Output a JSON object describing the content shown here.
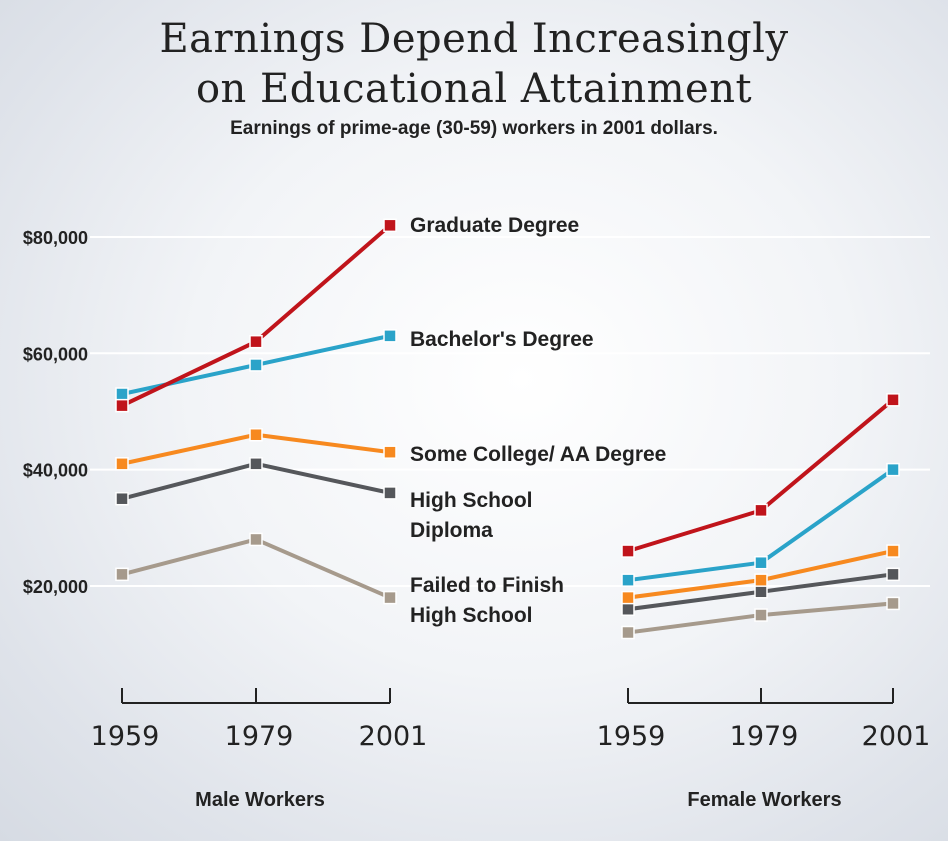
{
  "title_line1": "Earnings Depend Increasingly",
  "title_line2": "on Educational Attainment",
  "subtitle": "Earnings of prime-age (30-59) workers in 2001 dollars.",
  "chart_data": {
    "type": "line",
    "title": "Earnings Depend Increasingly on Educational Attainment",
    "subtitle": "Earnings of prime-age (30-59) workers in 2001 dollars.",
    "ylabel": "",
    "ylim": [
      0,
      90000
    ],
    "yticks": [
      20000,
      40000,
      60000,
      80000
    ],
    "ytick_labels": [
      "$20,000",
      "$40,000",
      "$60,000",
      "$80,000"
    ],
    "x": [
      "1959",
      "1979",
      "2001"
    ],
    "panels": [
      {
        "name": "Male Workers",
        "series": [
          {
            "name": "Graduate Degree",
            "values": [
              51000,
              62000,
              82000
            ]
          },
          {
            "name": "Bachelor's Degree",
            "values": [
              53000,
              58000,
              63000
            ]
          },
          {
            "name": "Some College/ AA Degree",
            "values": [
              41000,
              46000,
              43000
            ]
          },
          {
            "name": "High School Diploma",
            "values": [
              35000,
              41000,
              36000
            ]
          },
          {
            "name": "Failed to Finish High School",
            "values": [
              22000,
              28000,
              18000
            ]
          }
        ]
      },
      {
        "name": "Female Workers",
        "series": [
          {
            "name": "Graduate Degree",
            "values": [
              26000,
              33000,
              52000
            ]
          },
          {
            "name": "Bachelor's Degree",
            "values": [
              21000,
              24000,
              40000
            ]
          },
          {
            "name": "Some College/ AA Degree",
            "values": [
              18000,
              21000,
              26000
            ]
          },
          {
            "name": "High School Diploma",
            "values": [
              16000,
              19000,
              22000
            ]
          },
          {
            "name": "Failed to Finish High School",
            "values": [
              12000,
              15000,
              17000
            ]
          }
        ]
      }
    ],
    "series_colors": [
      "#c0141b",
      "#2aa3c9",
      "#f7891f",
      "#55575b",
      "#a69a8c"
    ],
    "series_labels": [
      {
        "series": "Graduate Degree",
        "lines": [
          "Graduate Degree"
        ]
      },
      {
        "series": "Bachelor's Degree",
        "lines": [
          "Bachelor's Degree"
        ]
      },
      {
        "series": "Some College/ AA Degree",
        "lines": [
          "Some College/ AA Degree"
        ]
      },
      {
        "series": "High School Diploma",
        "lines": [
          "High School",
          "Diploma"
        ]
      },
      {
        "series": "Failed to Finish High School",
        "lines": [
          "Failed to Finish",
          "High School"
        ]
      }
    ],
    "grid": true
  }
}
